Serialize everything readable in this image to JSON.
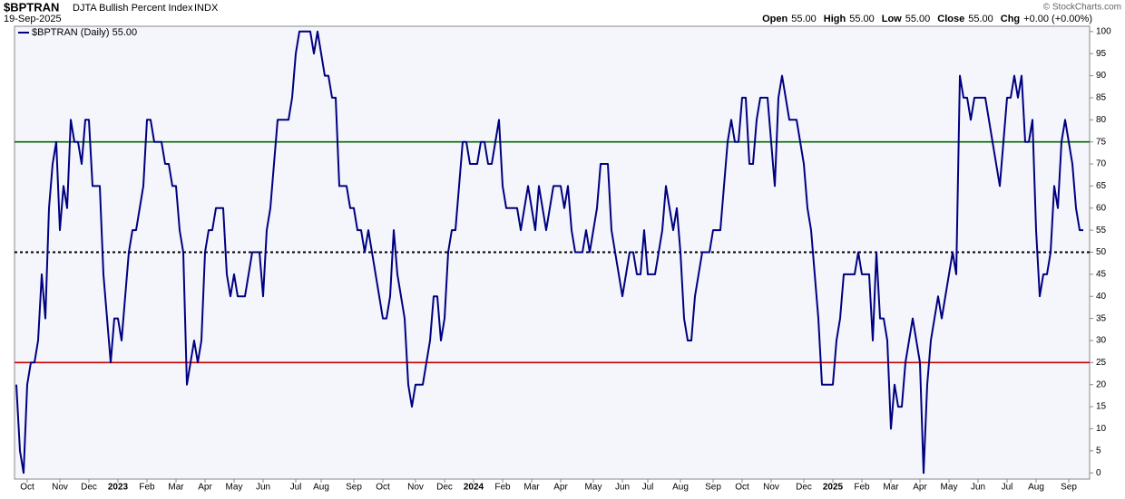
{
  "chart_data": {
    "type": "line",
    "symbol": "$BPTRAN",
    "title": "DJTA Bullish Percent Index",
    "exchange": "INDX",
    "date": "19-Sep-2025",
    "quote": [
      {
        "label": "Open",
        "value": "55.00"
      },
      {
        "label": "High",
        "value": "55.00"
      },
      {
        "label": "Low",
        "value": "55.00"
      },
      {
        "label": "Close",
        "value": "55.00"
      },
      {
        "label": "Chg",
        "value": "+0.00 (+0.00%)"
      }
    ],
    "credit": "© StockCharts.com",
    "ylim": [
      -1.4,
      101.2
    ],
    "yticks": [
      0,
      5,
      10,
      15,
      20,
      25,
      30,
      35,
      40,
      45,
      50,
      55,
      60,
      65,
      70,
      75,
      80,
      85,
      90,
      95,
      100
    ],
    "reference_lines": [
      {
        "value": 75,
        "color": "#006400",
        "style": "solid"
      },
      {
        "value": 50,
        "color": "#000000",
        "style": "dotted"
      },
      {
        "value": 25,
        "color": "#cc0000",
        "style": "solid"
      }
    ],
    "categories": [
      null,
      null,
      null,
      "Oct",
      null,
      null,
      null,
      null,
      null,
      null,
      null,
      null,
      "Nov",
      null,
      null,
      null,
      null,
      null,
      null,
      null,
      "Dec",
      null,
      null,
      null,
      null,
      null,
      null,
      null,
      "2023",
      null,
      null,
      null,
      null,
      null,
      null,
      null,
      "Feb",
      null,
      null,
      null,
      null,
      null,
      null,
      null,
      "Mar",
      null,
      null,
      null,
      null,
      null,
      null,
      null,
      "Apr",
      null,
      null,
      null,
      null,
      null,
      null,
      null,
      "May",
      null,
      null,
      null,
      null,
      null,
      null,
      null,
      "Jun",
      null,
      null,
      null,
      null,
      null,
      null,
      null,
      null,
      "Jul",
      null,
      null,
      null,
      null,
      null,
      null,
      "Aug",
      null,
      null,
      null,
      null,
      null,
      null,
      null,
      null,
      "Sep",
      null,
      null,
      null,
      null,
      null,
      null,
      null,
      "Oct",
      null,
      null,
      null,
      null,
      null,
      null,
      null,
      null,
      "Nov",
      null,
      null,
      null,
      null,
      null,
      null,
      null,
      "Dec",
      null,
      null,
      null,
      null,
      null,
      null,
      null,
      "2024",
      null,
      null,
      null,
      null,
      null,
      null,
      null,
      "Feb",
      null,
      null,
      null,
      null,
      null,
      null,
      null,
      "Mar",
      null,
      null,
      null,
      null,
      null,
      null,
      null,
      "Apr",
      null,
      null,
      null,
      null,
      null,
      null,
      null,
      null,
      "May",
      null,
      null,
      null,
      null,
      null,
      null,
      null,
      "Jun",
      null,
      null,
      null,
      null,
      null,
      null,
      "Jul",
      null,
      null,
      null,
      null,
      null,
      null,
      null,
      null,
      "Aug",
      null,
      null,
      null,
      null,
      null,
      null,
      null,
      null,
      "Sep",
      null,
      null,
      null,
      null,
      null,
      null,
      null,
      "Oct",
      null,
      null,
      null,
      null,
      null,
      null,
      null,
      "Nov",
      null,
      null,
      null,
      null,
      null,
      null,
      null,
      null,
      "Dec",
      null,
      null,
      null,
      null,
      null,
      null,
      null,
      "2025",
      null,
      null,
      null,
      null,
      null,
      null,
      null,
      "Feb",
      null,
      null,
      null,
      null,
      null,
      null,
      null,
      "Mar",
      null,
      null,
      null,
      null,
      null,
      null,
      null,
      "Apr",
      null,
      null,
      null,
      null,
      null,
      null,
      null,
      "May",
      null,
      null,
      null,
      null,
      null,
      null,
      null,
      "Jun",
      null,
      null,
      null,
      null,
      null,
      null,
      null,
      "Jul",
      null,
      null,
      null,
      null,
      null,
      null,
      null,
      "Aug",
      null,
      null,
      null,
      null,
      null,
      null,
      null,
      null,
      "Sep",
      null,
      null,
      null,
      null
    ],
    "series": [
      {
        "name": "$BPTRAN (Daily) 55.00",
        "color": "#000080",
        "values": [
          20,
          5,
          0,
          20,
          25,
          25,
          30,
          45,
          35,
          60,
          70,
          75,
          55,
          65,
          60,
          80,
          75,
          75,
          70,
          80,
          80,
          65,
          65,
          65,
          45,
          35,
          25,
          35,
          35,
          30,
          40,
          50,
          55,
          55,
          60,
          65,
          80,
          80,
          75,
          75,
          75,
          70,
          70,
          65,
          65,
          55,
          50,
          20,
          25,
          30,
          25,
          30,
          50,
          55,
          55,
          60,
          60,
          60,
          45,
          40,
          45,
          40,
          40,
          40,
          45,
          50,
          50,
          50,
          40,
          55,
          60,
          70,
          80,
          80,
          80,
          80,
          85,
          95,
          100,
          100,
          100,
          100,
          95,
          100,
          95,
          90,
          90,
          85,
          85,
          65,
          65,
          65,
          60,
          60,
          55,
          55,
          50,
          55,
          50,
          45,
          40,
          35,
          35,
          40,
          55,
          45,
          40,
          35,
          20,
          15,
          20,
          20,
          20,
          25,
          30,
          40,
          40,
          30,
          35,
          50,
          55,
          55,
          65,
          75,
          75,
          70,
          70,
          70,
          75,
          75,
          70,
          70,
          75,
          80,
          65,
          60,
          60,
          60,
          60,
          55,
          60,
          65,
          60,
          55,
          65,
          60,
          55,
          60,
          65,
          65,
          65,
          60,
          65,
          55,
          50,
          50,
          50,
          55,
          50,
          55,
          60,
          70,
          70,
          70,
          55,
          50,
          45,
          40,
          45,
          50,
          50,
          45,
          45,
          55,
          45,
          45,
          45,
          50,
          55,
          65,
          60,
          55,
          60,
          50,
          35,
          30,
          30,
          40,
          45,
          50,
          50,
          50,
          55,
          55,
          55,
          65,
          75,
          80,
          75,
          75,
          85,
          85,
          70,
          70,
          80,
          85,
          85,
          85,
          75,
          65,
          85,
          90,
          85,
          80,
          80,
          80,
          75,
          70,
          60,
          55,
          45,
          35,
          20,
          20,
          20,
          20,
          30,
          35,
          45,
          45,
          45,
          45,
          50,
          45,
          45,
          45,
          30,
          50,
          35,
          35,
          30,
          10,
          20,
          15,
          15,
          25,
          30,
          35,
          30,
          25,
          0,
          20,
          30,
          35,
          40,
          35,
          40,
          45,
          50,
          45,
          90,
          85,
          85,
          80,
          85,
          85,
          85,
          85,
          80,
          75,
          70,
          65,
          75,
          85,
          85,
          90,
          85,
          90,
          75,
          75,
          80,
          55,
          40,
          45,
          45,
          50,
          65,
          60,
          75,
          80,
          75,
          70,
          60,
          55,
          55
        ]
      }
    ]
  }
}
